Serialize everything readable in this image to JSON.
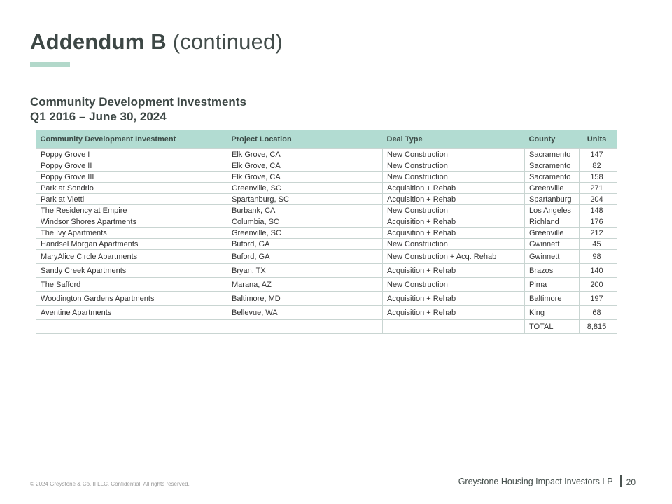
{
  "slide": {
    "title": "Addendum B",
    "title_suffix": "(continued)",
    "subtitle_line1": "Community Development Investments",
    "subtitle_line2": "Q1 2016 – June 30, 2024"
  },
  "table": {
    "columns": [
      "Community Development Investment",
      "Project Location",
      "Deal Type",
      "County",
      "Units"
    ],
    "rows": [
      {
        "investment": "Poppy Grove I",
        "location": "Elk Grove, CA",
        "deal_type": "New Construction",
        "county": "Sacramento",
        "units": "147"
      },
      {
        "investment": "Poppy Grove II",
        "location": "Elk Grove, CA",
        "deal_type": "New Construction",
        "county": "Sacramento",
        "units": "82"
      },
      {
        "investment": "Poppy Grove III",
        "location": "Elk Grove, CA",
        "deal_type": "New Construction",
        "county": "Sacramento",
        "units": "158"
      },
      {
        "investment": "Park at Sondrio",
        "location": "Greenville, SC",
        "deal_type": "Acquisition + Rehab",
        "county": "Greenville",
        "units": "271"
      },
      {
        "investment": "Park at Vietti",
        "location": "Spartanburg, SC",
        "deal_type": "Acquisition + Rehab",
        "county": "Spartanburg",
        "units": "204"
      },
      {
        "investment": "The Residency at Empire",
        "location": "Burbank, CA",
        "deal_type": "New Construction",
        "county": "Los Angeles",
        "units": "148"
      },
      {
        "investment": "Windsor Shores Apartments",
        "location": "Columbia, SC",
        "deal_type": "Acquisition + Rehab",
        "county": "Richland",
        "units": "176"
      },
      {
        "investment": "The Ivy Apartments",
        "location": "Greenville, SC",
        "deal_type": "Acquisition + Rehab",
        "county": "Greenville",
        "units": "212"
      },
      {
        "investment": "Handsel Morgan Apartments",
        "location": "Buford, GA",
        "deal_type": "New Construction",
        "county": "Gwinnett",
        "units": "45"
      },
      {
        "investment": "MaryAlice Circle Apartments",
        "location": "Buford, GA",
        "deal_type": "New Construction + Acq. Rehab",
        "county": "Gwinnett",
        "units": "98"
      },
      {
        "investment": "Sandy Creek Apartments",
        "location": "Bryan, TX",
        "deal_type": "Acquisition + Rehab",
        "county": "Brazos",
        "units": "140"
      },
      {
        "investment": "The Safford",
        "location": "Marana, AZ",
        "deal_type": "New Construction",
        "county": "Pima",
        "units": "200"
      },
      {
        "investment": "Woodington Gardens Apartments",
        "location": "Baltimore, MD",
        "deal_type": "Acquisition + Rehab",
        "county": "Baltimore",
        "units": "197"
      },
      {
        "investment": "Aventine Apartments",
        "location": "Bellevue, WA",
        "deal_type": "Acquisition + Rehab",
        "county": "King",
        "units": "68"
      }
    ],
    "total_label": "TOTAL",
    "total_units": "8,815"
  },
  "footer": {
    "copyright": "© 2024 Greystone & Co. II LLC. Confidential. All rights reserved.",
    "company": "Greystone Housing Impact Investors LP",
    "page_number": "20"
  },
  "colors": {
    "accent_teal": "#b2d8ca",
    "table_header_bg": "#b2dcd2",
    "table_border": "#c9d5d2",
    "title_text": "#3d4745",
    "body_text": "#333333",
    "footer_muted": "#9a9a9a"
  }
}
